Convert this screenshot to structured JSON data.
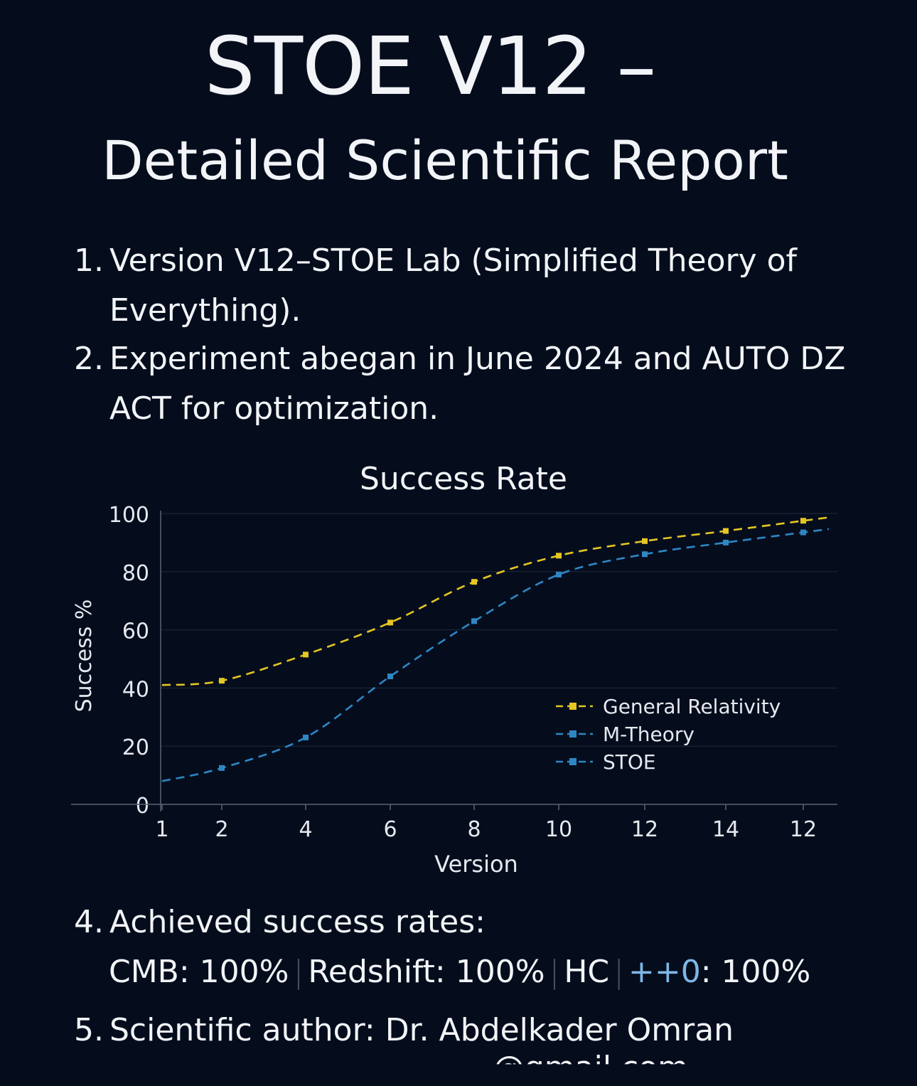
{
  "title": "STOE V12 –",
  "subtitle": "Detailed Scientific Report",
  "items": [
    {
      "num": "1.",
      "text": "Version V12–STOE Lab (Simplified Theory of Everything)."
    },
    {
      "num": "2.",
      "text": "Experiment abegan in June 2024 and AUTO DZ ACT for optimization."
    },
    {
      "num": "4.",
      "text": "Achieved success rates:"
    },
    {
      "num": "5.",
      "text": "Scientific author: Dr. Abdelkader Omran"
    }
  ],
  "rates": {
    "cmb": "CMB: 100%",
    "redshift": "Redshift: 100%",
    "hc": "HC",
    "pp_label": "++0",
    "pp_value": ": 100%"
  },
  "footer_partial": "...........@gmail.com",
  "chart_data": {
    "type": "line",
    "title": "Success Rate",
    "xlabel": "Version",
    "ylabel": "Success %",
    "x_tick_labels": [
      "1",
      "2",
      "4",
      "6",
      "8",
      "10",
      "12",
      "14",
      "12"
    ],
    "ylim": [
      0,
      100
    ],
    "y_ticks": [
      0,
      20,
      40,
      60,
      80,
      100
    ],
    "grid": true,
    "legend_position": "center-right",
    "series": [
      {
        "name": "General Relativity",
        "color": "#e5c622",
        "values": [
          41,
          42.5,
          51.5,
          62.5,
          76.5,
          85.5,
          90.5,
          94,
          97.5
        ]
      },
      {
        "name": "M-Theory",
        "color": "#2e87c4",
        "values": [
          8,
          12.5,
          23,
          44,
          63,
          79,
          86,
          90,
          93.5
        ]
      },
      {
        "name": "STOE",
        "color": "#2e87c4",
        "values": []
      }
    ]
  }
}
